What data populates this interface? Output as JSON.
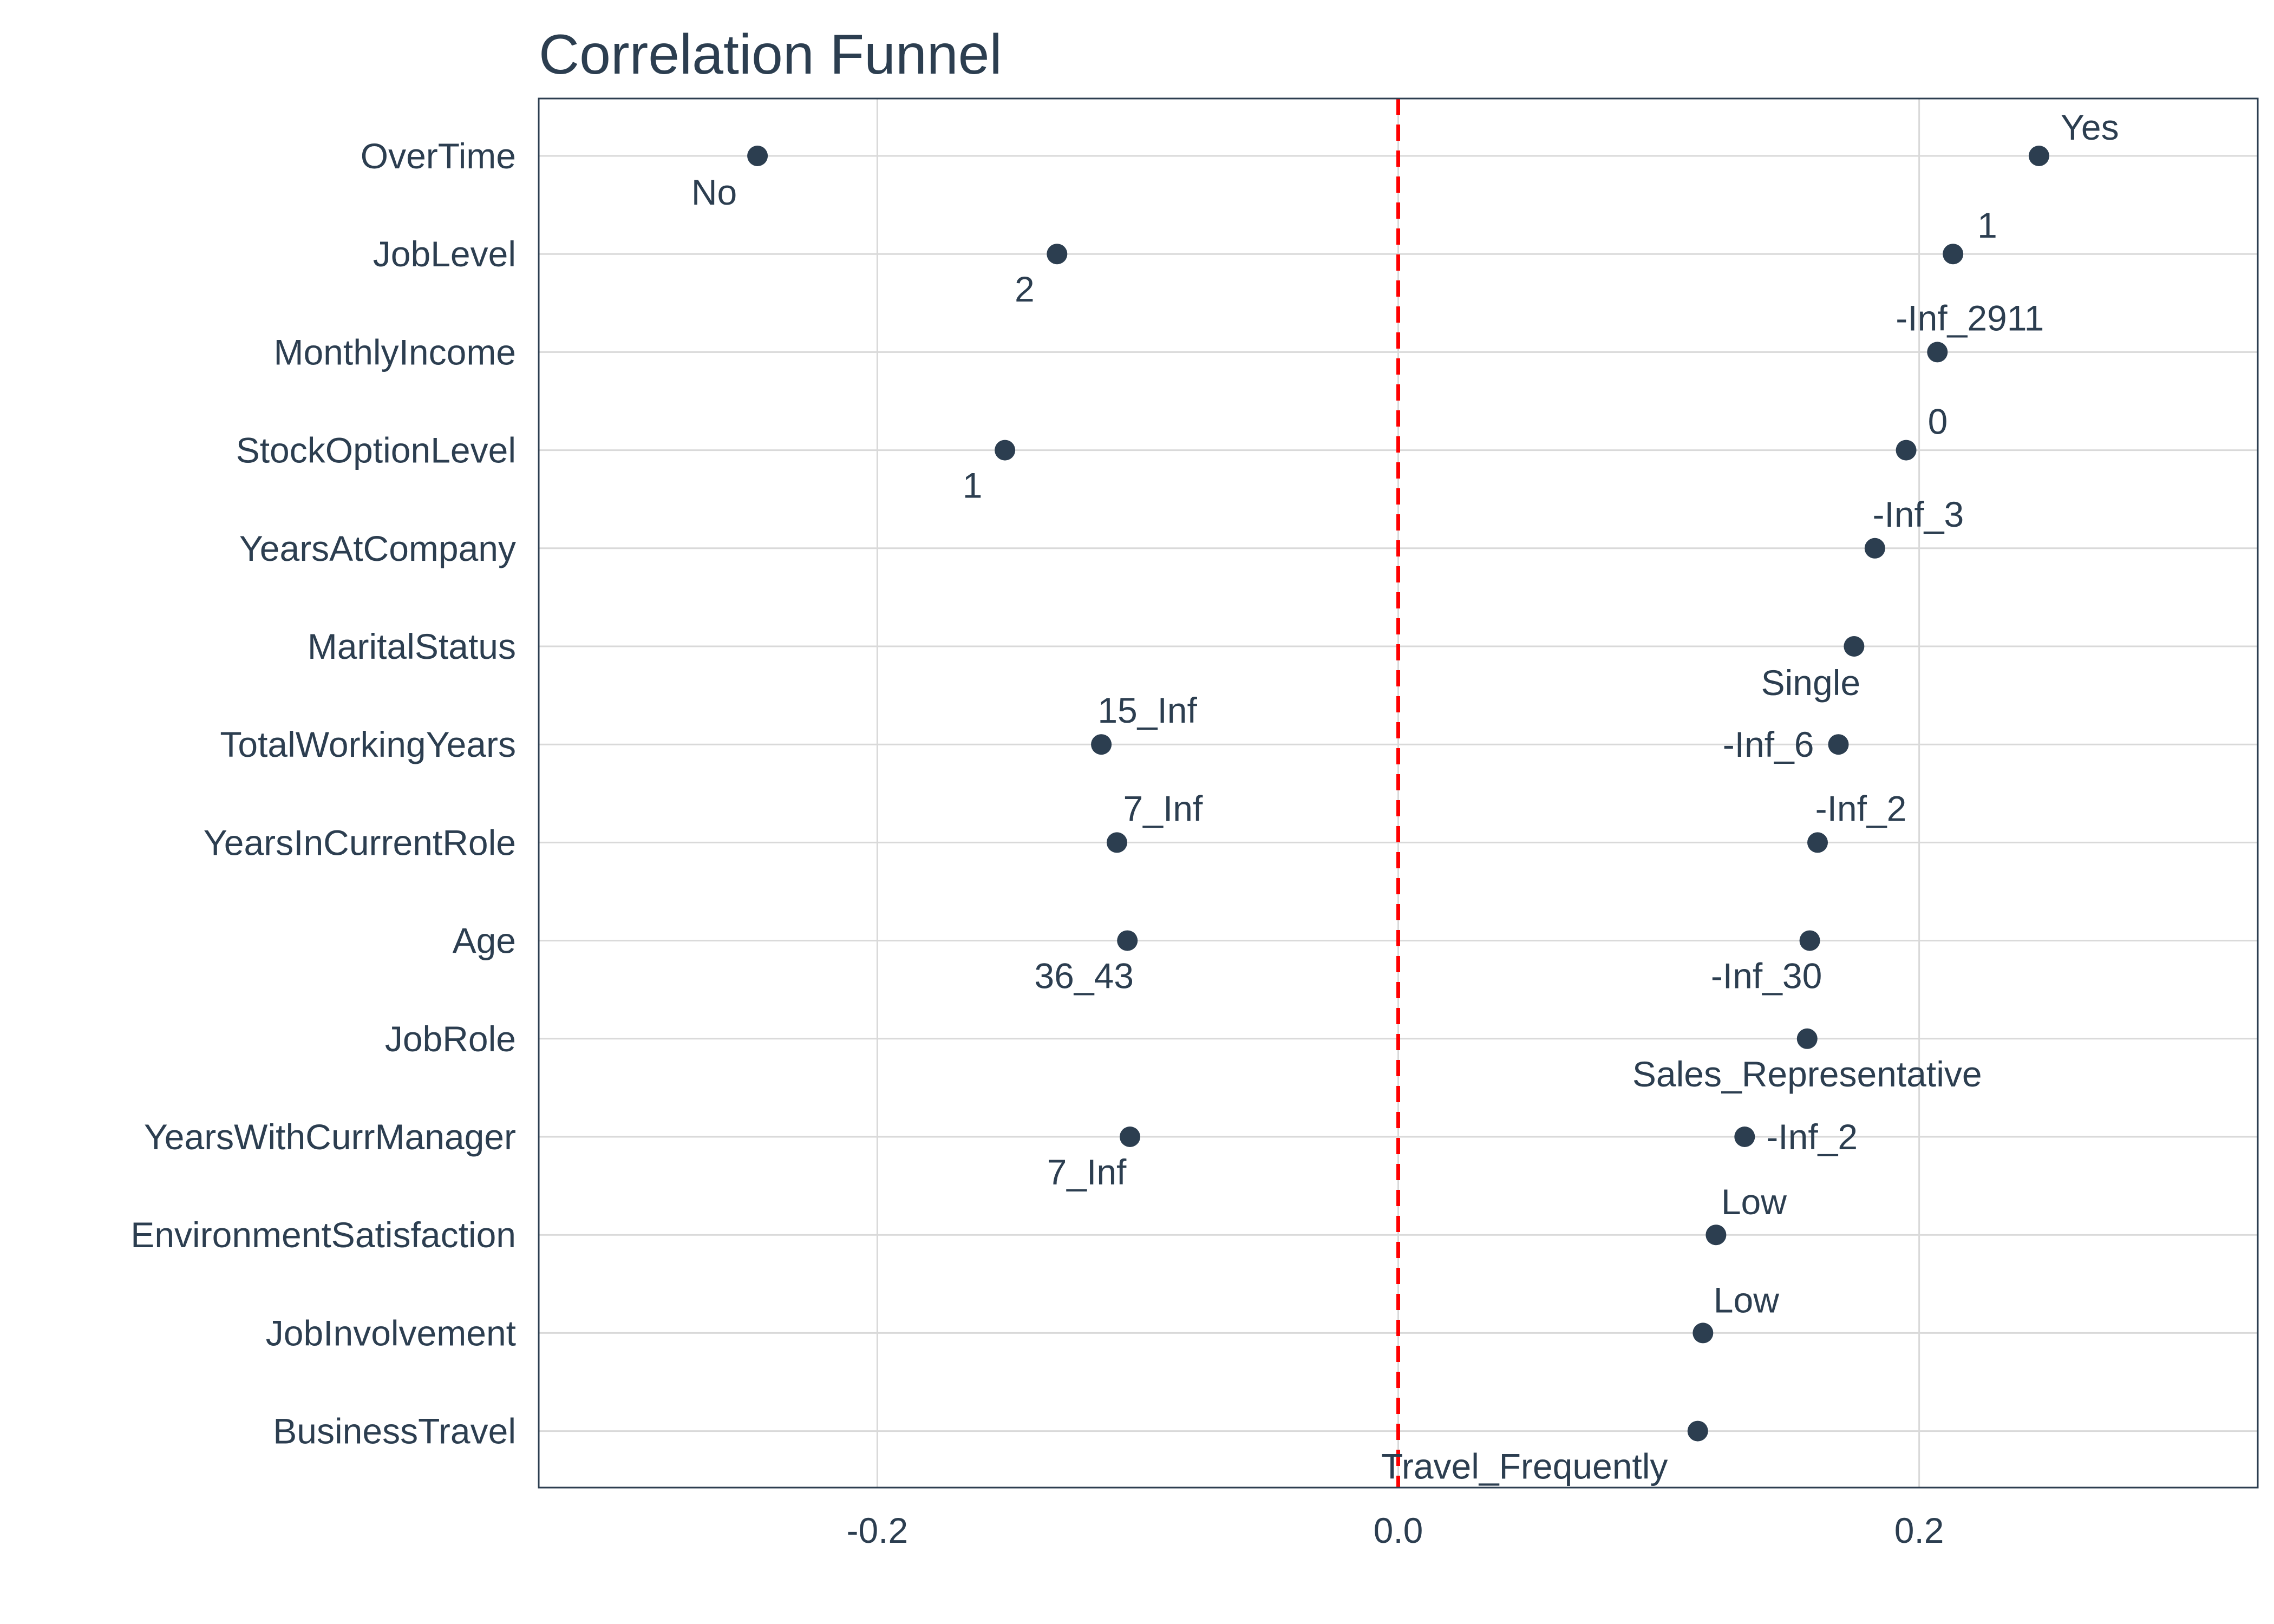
{
  "chart_data": {
    "type": "scatter",
    "title": "Correlation Funnel",
    "xlabel": "",
    "ylabel": "",
    "xlim": [
      -0.33,
      0.33
    ],
    "xticks": [
      -0.2,
      0.0,
      0.2
    ],
    "xtick_labels": [
      "-0.2",
      "0.0",
      "0.2"
    ],
    "reference_line": {
      "x": 0.0,
      "style": "dashed",
      "color": "#ff0000"
    },
    "grid": true,
    "legend": "none",
    "colors": {
      "point": "#2c3e50",
      "text": "#2c3e50",
      "grid": "#d9d9d9",
      "border": "#2c3e50"
    },
    "categories": [
      "OverTime",
      "JobLevel",
      "MonthlyIncome",
      "StockOptionLevel",
      "YearsAtCompany",
      "MaritalStatus",
      "TotalWorkingYears",
      "YearsInCurrentRole",
      "Age",
      "JobRole",
      "YearsWithCurrManager",
      "EnvironmentSatisfaction",
      "JobInvolvement",
      "BusinessTravel"
    ],
    "points": [
      {
        "feature": "OverTime",
        "bin": "Yes",
        "correlation": 0.246
      },
      {
        "feature": "OverTime",
        "bin": "No",
        "correlation": -0.246
      },
      {
        "feature": "JobLevel",
        "bin": "1",
        "correlation": 0.213
      },
      {
        "feature": "JobLevel",
        "bin": "2",
        "correlation": -0.131
      },
      {
        "feature": "MonthlyIncome",
        "bin": "-Inf_2911",
        "correlation": 0.207
      },
      {
        "feature": "StockOptionLevel",
        "bin": "0",
        "correlation": 0.195
      },
      {
        "feature": "StockOptionLevel",
        "bin": "1",
        "correlation": -0.151
      },
      {
        "feature": "YearsAtCompany",
        "bin": "-Inf_3",
        "correlation": 0.183
      },
      {
        "feature": "MaritalStatus",
        "bin": "Single",
        "correlation": 0.175
      },
      {
        "feature": "TotalWorkingYears",
        "bin": "-Inf_6",
        "correlation": 0.169
      },
      {
        "feature": "TotalWorkingYears",
        "bin": "15_Inf",
        "correlation": -0.114
      },
      {
        "feature": "YearsInCurrentRole",
        "bin": "-Inf_2",
        "correlation": 0.161
      },
      {
        "feature": "YearsInCurrentRole",
        "bin": "7_Inf",
        "correlation": -0.108
      },
      {
        "feature": "Age",
        "bin": "-Inf_30",
        "correlation": 0.158
      },
      {
        "feature": "Age",
        "bin": "36_43",
        "correlation": -0.104
      },
      {
        "feature": "JobRole",
        "bin": "Sales_Representative",
        "correlation": 0.157
      },
      {
        "feature": "YearsWithCurrManager",
        "bin": "-Inf_2",
        "correlation": 0.133
      },
      {
        "feature": "YearsWithCurrManager",
        "bin": "7_Inf",
        "correlation": -0.103
      },
      {
        "feature": "EnvironmentSatisfaction",
        "bin": "Low",
        "correlation": 0.122
      },
      {
        "feature": "JobInvolvement",
        "bin": "Low",
        "correlation": 0.117
      },
      {
        "feature": "BusinessTravel",
        "bin": "Travel_Frequently",
        "correlation": 0.115
      }
    ]
  }
}
